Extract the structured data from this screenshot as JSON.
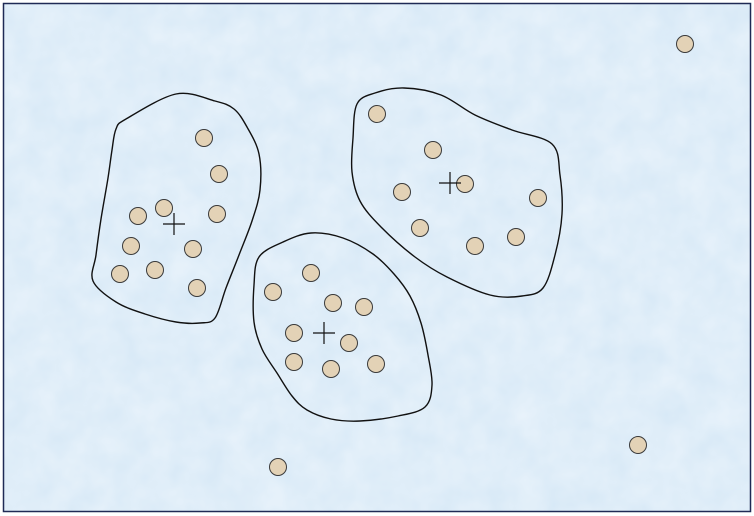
{
  "diagram": {
    "type": "clustering",
    "colors": {
      "background": "#d6e8f6",
      "frame": "#1f2a55",
      "point_fill": "#e3d2b6",
      "point_stroke": "#3a3a3a",
      "cluster_stroke": "#111111",
      "centroid": "#111111"
    },
    "clusters": [
      {
        "name": "cluster-left",
        "centroid": [
          174,
          224
        ],
        "boundary": [
          [
            116,
            129
          ],
          [
            126,
            119
          ],
          [
            176,
            94
          ],
          [
            215,
            101
          ],
          [
            234,
            109
          ],
          [
            247,
            127
          ],
          [
            259,
            154
          ],
          [
            260,
            190
          ],
          [
            252,
            221
          ],
          [
            239,
            255
          ],
          [
            226,
            288
          ],
          [
            215,
            318
          ],
          [
            200,
            323
          ],
          [
            176,
            322
          ],
          [
            145,
            314
          ],
          [
            116,
            302
          ],
          [
            93,
            281
          ],
          [
            96,
            255
          ],
          [
            101,
            219
          ],
          [
            108,
            178
          ],
          [
            112,
            150
          ]
        ],
        "points": [
          [
            204,
            138
          ],
          [
            219,
            174
          ],
          [
            138,
            216
          ],
          [
            164,
            208
          ],
          [
            217,
            214
          ],
          [
            131,
            246
          ],
          [
            193,
            249
          ],
          [
            120,
            274
          ],
          [
            155,
            270
          ],
          [
            197,
            288
          ]
        ]
      },
      {
        "name": "cluster-right",
        "centroid": [
          450,
          183
        ],
        "boundary": [
          [
            357,
            104
          ],
          [
            375,
            93
          ],
          [
            404,
            88
          ],
          [
            441,
            95
          ],
          [
            475,
            115
          ],
          [
            512,
            130
          ],
          [
            552,
            144
          ],
          [
            560,
            175
          ],
          [
            562,
            214
          ],
          [
            555,
            255
          ],
          [
            543,
            288
          ],
          [
            522,
            296
          ],
          [
            490,
            295
          ],
          [
            447,
            277
          ],
          [
            415,
            257
          ],
          [
            381,
            227
          ],
          [
            360,
            201
          ],
          [
            352,
            172
          ],
          [
            353,
            138
          ]
        ],
        "points": [
          [
            377,
            114
          ],
          [
            433,
            150
          ],
          [
            402,
            192
          ],
          [
            465,
            184
          ],
          [
            538,
            198
          ],
          [
            420,
            228
          ],
          [
            475,
            246
          ],
          [
            516,
            237
          ]
        ]
      },
      {
        "name": "cluster-bottom",
        "centroid": [
          324,
          333
        ],
        "boundary": [
          [
            259,
            257
          ],
          [
            283,
            242
          ],
          [
            311,
            233
          ],
          [
            343,
            238
          ],
          [
            373,
            254
          ],
          [
            394,
            274
          ],
          [
            410,
            296
          ],
          [
            421,
            323
          ],
          [
            428,
            355
          ],
          [
            432,
            385
          ],
          [
            425,
            407
          ],
          [
            398,
            416
          ],
          [
            360,
            421
          ],
          [
            331,
            419
          ],
          [
            307,
            410
          ],
          [
            292,
            396
          ],
          [
            277,
            373
          ],
          [
            262,
            349
          ],
          [
            254,
            322
          ],
          [
            254,
            285
          ]
        ],
        "points": [
          [
            311,
            273
          ],
          [
            273,
            292
          ],
          [
            333,
            303
          ],
          [
            364,
            307
          ],
          [
            294,
            333
          ],
          [
            349,
            343
          ],
          [
            294,
            362
          ],
          [
            331,
            369
          ],
          [
            376,
            364
          ]
        ]
      }
    ],
    "outliers": [
      [
        685,
        44
      ],
      [
        638,
        445
      ],
      [
        278,
        467
      ]
    ]
  }
}
